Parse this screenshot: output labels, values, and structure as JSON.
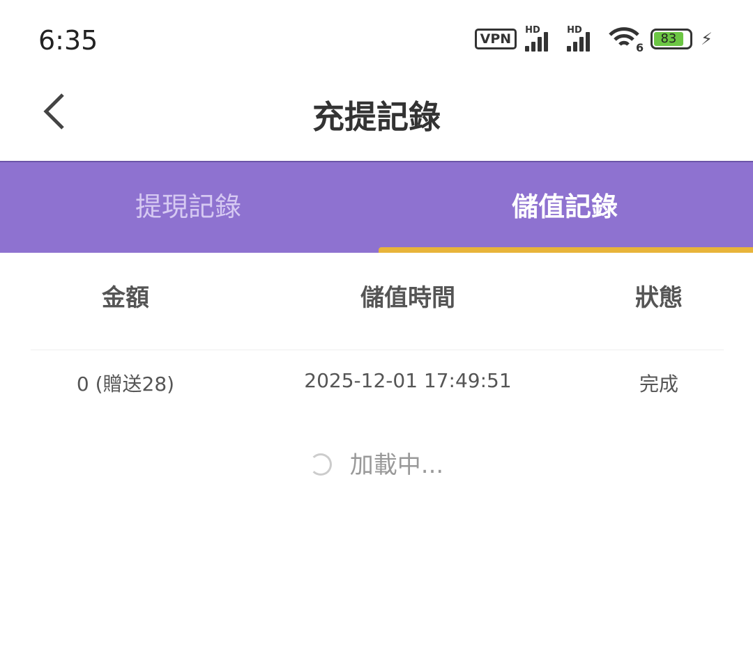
{
  "status_bar": {
    "time": "6:35",
    "vpn": "VPN",
    "signal1_label": "HD",
    "signal2_label": "HD",
    "wifi_label": "6",
    "battery": "83",
    "battery_level": 83
  },
  "header": {
    "title": "充提記錄"
  },
  "tabs": [
    {
      "label": "提現記錄",
      "active": false
    },
    {
      "label": "儲值記錄",
      "active": true
    }
  ],
  "table": {
    "headers": [
      "金額",
      "儲值時間",
      "狀態"
    ],
    "rows": [
      {
        "amount": "0 (贈送28)",
        "time": "2025-12-01 17:49:51",
        "status": "完成"
      }
    ]
  },
  "loading": "加載中...",
  "colors": {
    "tab_bar": "#8e72d0",
    "indicator": "#e8b43a",
    "battery": "#6cc644"
  }
}
